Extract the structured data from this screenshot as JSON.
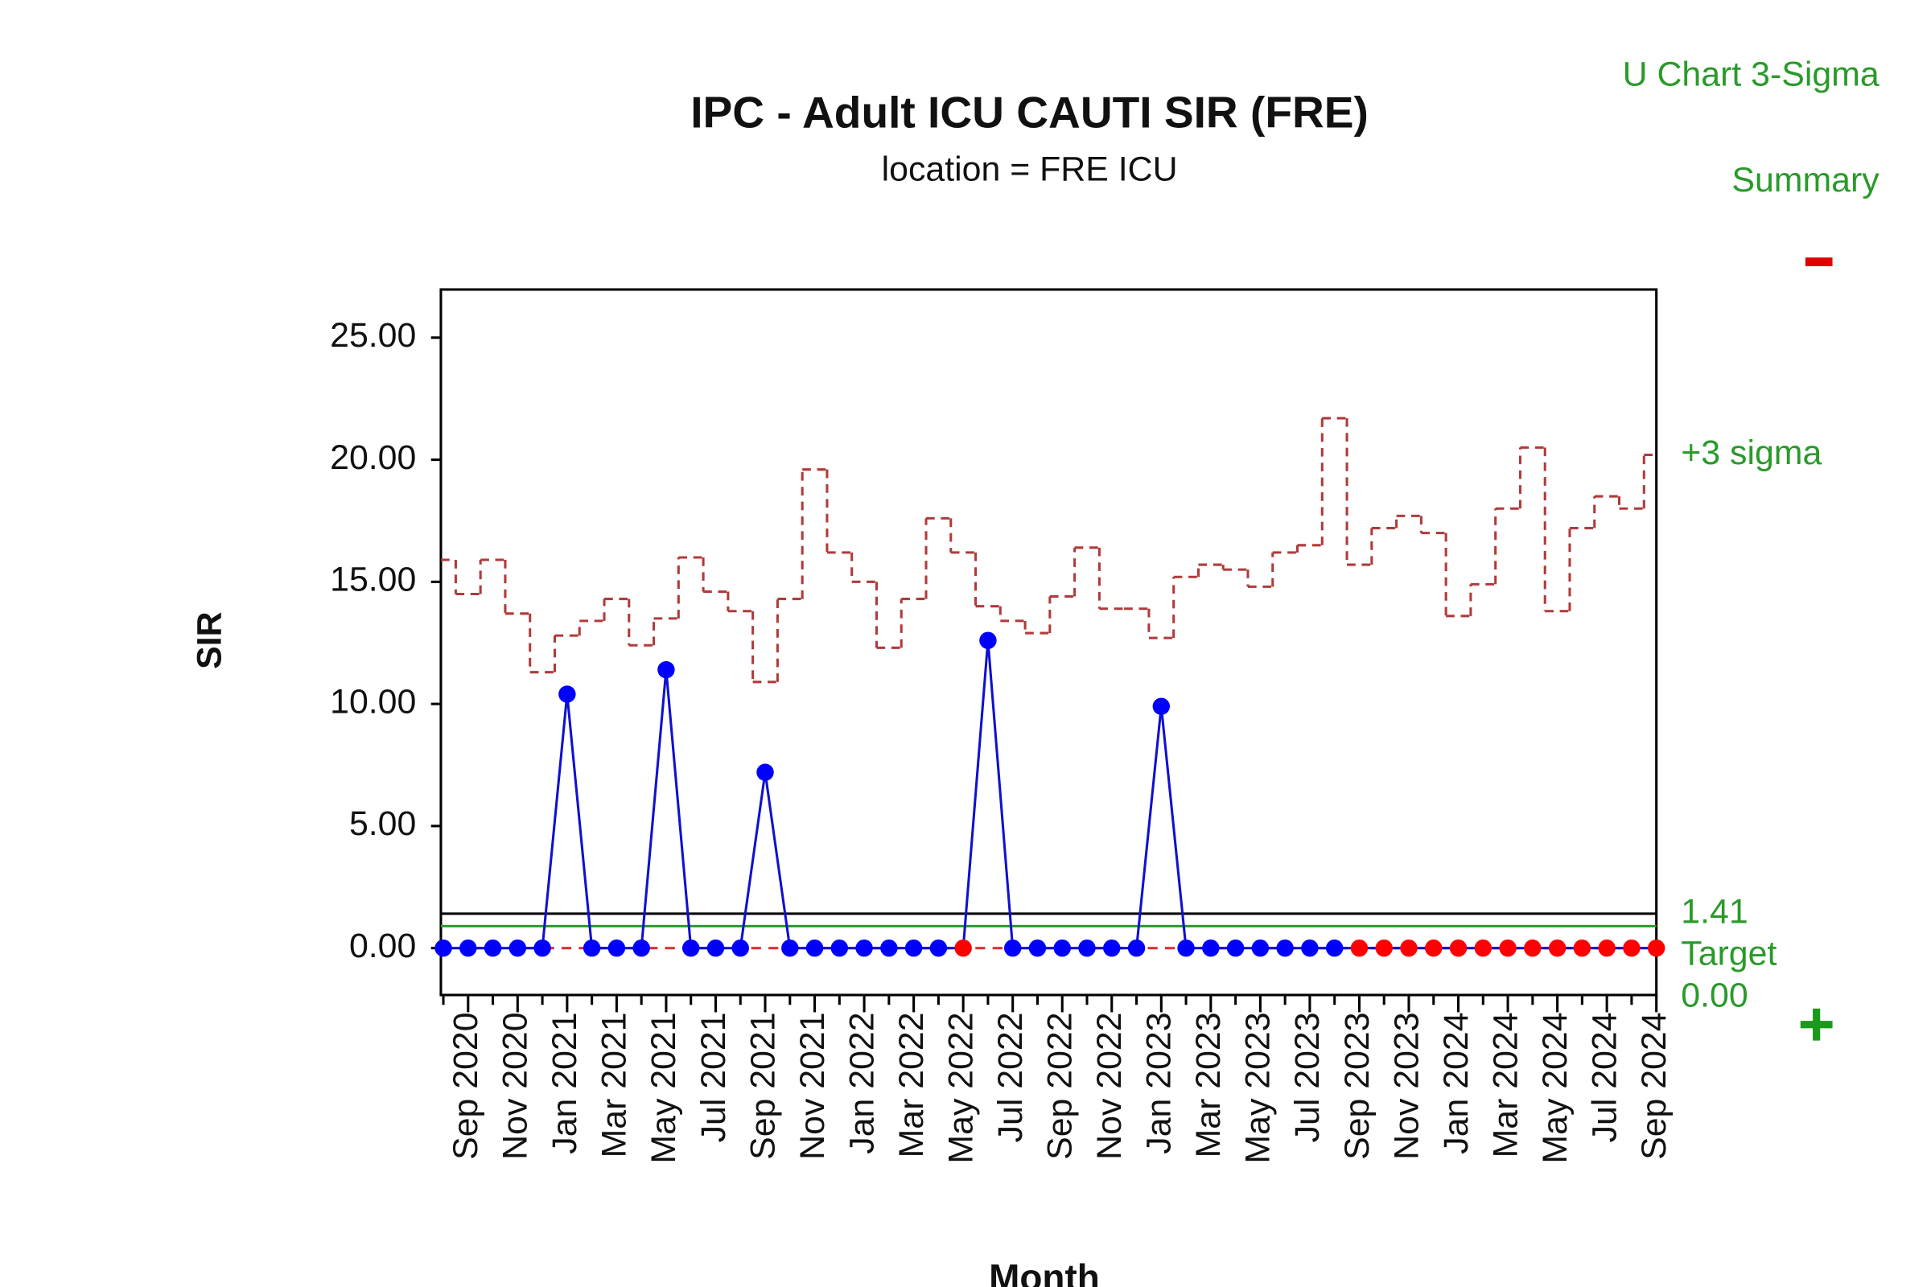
{
  "chart_data": {
    "type": "control",
    "title": "IPC - Adult ICU CAUTI SIR (FRE)",
    "subtitle": "location = FRE ICU",
    "corner_texts": [
      "U Chart 3-Sigma",
      "Summary"
    ],
    "x_label": "Month",
    "y_label": "SIR",
    "categories": [
      null,
      "Sep 2020",
      null,
      "Nov 2020",
      null,
      "Jan 2021",
      null,
      "Mar 2021",
      null,
      "May 2021",
      null,
      "Jul 2021",
      null,
      "Sep 2021",
      null,
      "Nov 2021",
      null,
      "Jan 2022",
      null,
      "Mar 2022",
      null,
      "May 2022",
      null,
      "Jul 2022",
      null,
      "Sep 2022",
      null,
      "Nov 2022",
      null,
      "Jan 2023",
      null,
      "Mar 2023",
      null,
      "May 2023",
      null,
      "Jul 2023",
      null,
      "Sep 2023",
      null,
      "Nov 2023",
      null,
      "Jan 2024",
      null,
      "Mar 2024",
      null,
      "May 2024",
      null,
      "Jul 2024",
      null,
      "Sep 2024"
    ],
    "series": [
      {
        "color": "#1010d0",
        "marker_colors": [
          "#0000ff",
          "#0000ff",
          "#0000ff",
          "#0000ff",
          "#0000ff",
          "#0000ff",
          "#0000ff",
          "#0000ff",
          "#0000ff",
          "#0000ff",
          "#0000ff",
          "#0000ff",
          "#0000ff",
          "#0000ff",
          "#0000ff",
          "#0000ff",
          "#0000ff",
          "#0000ff",
          "#0000ff",
          "#0000ff",
          "#0000ff",
          "#ff0000",
          "#0000ff",
          "#0000ff",
          "#0000ff",
          "#0000ff",
          "#0000ff",
          "#0000ff",
          "#0000ff",
          "#0000ff",
          "#0000ff",
          "#0000ff",
          "#0000ff",
          "#0000ff",
          "#0000ff",
          "#0000ff",
          "#0000ff",
          "#ff0000",
          "#ff0000",
          "#ff0000",
          "#ff0000",
          "#ff0000",
          "#ff0000",
          "#ff0000",
          "#ff0000",
          "#ff0000",
          "#ff0000",
          "#ff0000",
          "#ff0000",
          "#ff0000"
        ],
        "values": [
          0,
          0,
          0,
          0,
          0,
          10.4,
          0,
          0,
          0,
          11.4,
          0,
          0,
          0,
          7.2,
          0,
          0,
          0,
          0,
          0,
          0,
          0,
          0,
          12.6,
          0,
          0,
          0,
          0,
          0,
          0,
          9.9,
          0,
          0,
          0,
          0,
          0,
          0,
          0,
          0,
          0,
          0,
          0,
          0,
          0,
          0,
          0,
          0,
          0,
          0,
          0,
          0
        ]
      }
    ],
    "ucl": {
      "label": "+3 sigma",
      "color": "#b03a3a",
      "values": [
        15.9,
        14.5,
        15.9,
        13.7,
        11.3,
        12.8,
        13.4,
        14.3,
        12.4,
        13.5,
        16.0,
        14.6,
        13.8,
        10.9,
        14.3,
        19.6,
        16.2,
        15.0,
        12.3,
        14.3,
        17.6,
        16.2,
        14.0,
        13.4,
        12.9,
        14.4,
        16.4,
        13.9,
        13.9,
        12.7,
        15.2,
        15.7,
        15.5,
        14.8,
        16.2,
        16.5,
        21.7,
        15.7,
        17.2,
        17.7,
        17.0,
        13.6,
        14.9,
        18.0,
        20.5,
        13.8,
        17.2,
        18.5,
        18.0,
        20.2
      ]
    },
    "center_line": {
      "value": 1.41,
      "label": "1.41",
      "color": "#000000"
    },
    "target_line": {
      "value": 0.9,
      "label": "Target",
      "color": "#2a9a2a"
    },
    "lcl": {
      "value": 0,
      "label": "0.00",
      "color": "#e03030"
    },
    "ylim": [
      -1.92,
      26.97
    ],
    "yticks": [
      {
        "value": 0,
        "label": "0.00"
      },
      {
        "value": 5,
        "label": "5.00"
      },
      {
        "value": 10,
        "label": "10.00"
      },
      {
        "value": 15,
        "label": "15.00"
      },
      {
        "value": 20,
        "label": "20.00"
      },
      {
        "value": 25,
        "label": "25.00"
      }
    ]
  }
}
